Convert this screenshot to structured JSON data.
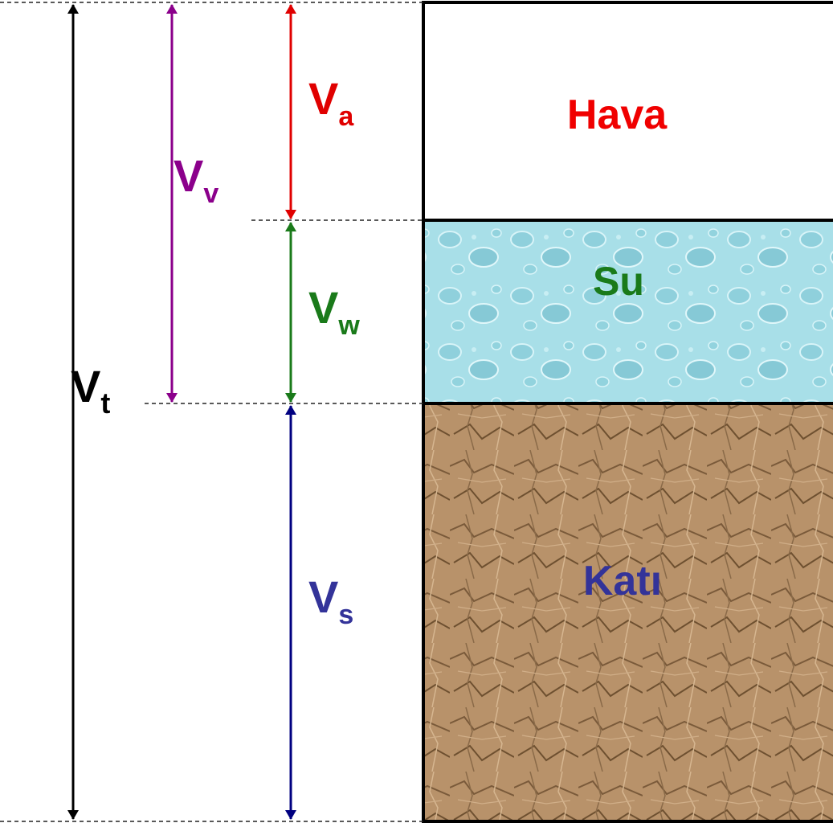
{
  "volumes": [
    {
      "symbol": "V",
      "subscript": "t"
    },
    {
      "symbol": "V",
      "subscript": "v"
    },
    {
      "symbol": "V",
      "subscript": "a"
    },
    {
      "symbol": "V",
      "subscript": "w"
    },
    {
      "symbol": "V",
      "subscript": "s"
    }
  ],
  "phases": [
    {
      "label": "Hava"
    },
    {
      "label": "Su"
    },
    {
      "label": "Katı"
    }
  ]
}
